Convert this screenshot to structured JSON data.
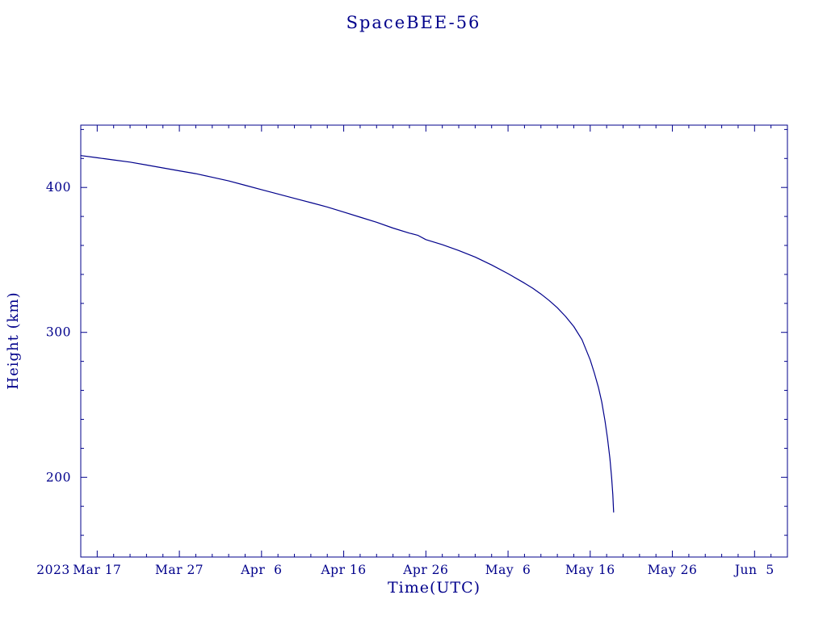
{
  "chart_data": {
    "type": "line",
    "title": "SpaceBEE-56",
    "xlabel": "Time(UTC)",
    "ylabel": "Height (km)",
    "year_label": "2023",
    "line_color": "#00008b",
    "x_unit": "days since 2023 Mar 15",
    "x_range": [
      0,
      86
    ],
    "y_range": [
      145,
      443
    ],
    "x_minor_step": 2,
    "y_minor_step": 20,
    "x_ticks": [
      {
        "day": 2,
        "label": "Mar 17"
      },
      {
        "day": 12,
        "label": "Mar 27"
      },
      {
        "day": 22,
        "label": "Apr  6"
      },
      {
        "day": 32,
        "label": "Apr 16"
      },
      {
        "day": 42,
        "label": "Apr 26"
      },
      {
        "day": 52,
        "label": "May  6"
      },
      {
        "day": 62,
        "label": "May 16"
      },
      {
        "day": 72,
        "label": "May 26"
      },
      {
        "day": 82,
        "label": "Jun  5"
      }
    ],
    "y_ticks": [
      200,
      300,
      400
    ],
    "points": [
      [
        0,
        422
      ],
      [
        2,
        420.5
      ],
      [
        4,
        419
      ],
      [
        6,
        417.5
      ],
      [
        8,
        415.5
      ],
      [
        10,
        413.5
      ],
      [
        12,
        411.5
      ],
      [
        14,
        409.5
      ],
      [
        16,
        407
      ],
      [
        18,
        404.5
      ],
      [
        20,
        401.5
      ],
      [
        22,
        398.5
      ],
      [
        24,
        395.5
      ],
      [
        26,
        392.5
      ],
      [
        28,
        389.5
      ],
      [
        30,
        386.5
      ],
      [
        32,
        383
      ],
      [
        34,
        379.5
      ],
      [
        36,
        376
      ],
      [
        38,
        372
      ],
      [
        40,
        368.5
      ],
      [
        41,
        367
      ],
      [
        42,
        364
      ],
      [
        44,
        360.5
      ],
      [
        46,
        356.5
      ],
      [
        48,
        352
      ],
      [
        50,
        346.5
      ],
      [
        52,
        340.5
      ],
      [
        54,
        334
      ],
      [
        55,
        330.5
      ],
      [
        56,
        326.5
      ],
      [
        57,
        322
      ],
      [
        58,
        317
      ],
      [
        59,
        311
      ],
      [
        60,
        304
      ],
      [
        61,
        295
      ],
      [
        62,
        281
      ],
      [
        62.5,
        272
      ],
      [
        63,
        262
      ],
      [
        63.4,
        252
      ],
      [
        63.8,
        239
      ],
      [
        64.1,
        227
      ],
      [
        64.4,
        213
      ],
      [
        64.6,
        200
      ],
      [
        64.75,
        188
      ],
      [
        64.85,
        176
      ]
    ]
  }
}
